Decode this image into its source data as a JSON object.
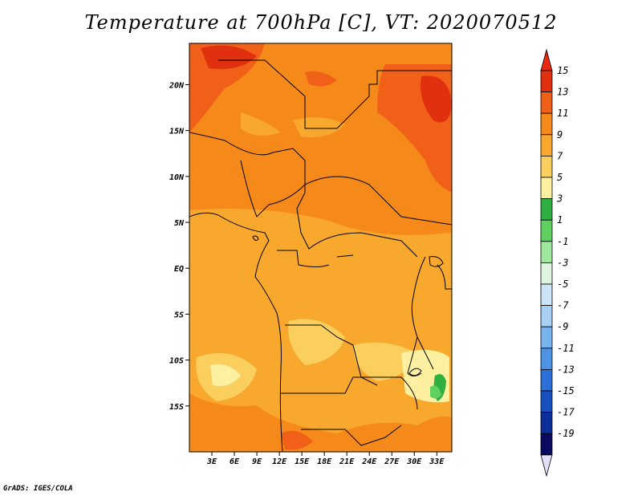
{
  "title": "Temperature at 700hPa [C], VT: 2020070512",
  "credit": "GrADS: IGES/COLA",
  "map": {
    "lon_range": [
      0,
      35
    ],
    "lat_range": [
      -20,
      24.5
    ],
    "lat_ticks": [
      {
        "value": 20,
        "label": "20N"
      },
      {
        "value": 15,
        "label": "15N"
      },
      {
        "value": 10,
        "label": "10N"
      },
      {
        "value": 5,
        "label": "5N"
      },
      {
        "value": 0,
        "label": "EQ"
      },
      {
        "value": -5,
        "label": "5S"
      },
      {
        "value": -10,
        "label": "10S"
      },
      {
        "value": -15,
        "label": "15S"
      }
    ],
    "lon_ticks": [
      {
        "value": 3,
        "label": "3E"
      },
      {
        "value": 6,
        "label": "6E"
      },
      {
        "value": 9,
        "label": "9E"
      },
      {
        "value": 12,
        "label": "12E"
      },
      {
        "value": 15,
        "label": "15E"
      },
      {
        "value": 18,
        "label": "18E"
      },
      {
        "value": 21,
        "label": "21E"
      },
      {
        "value": 24,
        "label": "24E"
      },
      {
        "value": 27,
        "label": "27E"
      },
      {
        "value": 30,
        "label": "30E"
      },
      {
        "value": 33,
        "label": "33E"
      }
    ]
  },
  "colorbar": {
    "levels": [
      "15",
      "13",
      "11",
      "9",
      "7",
      "5",
      "3",
      "1",
      "-1",
      "-3",
      "-5",
      "-7",
      "-9",
      "-11",
      "-13",
      "-15",
      "-17",
      "-19"
    ],
    "colors": [
      "#e03010",
      "#f06018",
      "#f58a1a",
      "#f9a82e",
      "#fbcf5e",
      "#fdf0a0",
      "#30b040",
      "#60d060",
      "#a0e8a0",
      "#e0f5e0",
      "#cce4f8",
      "#a8d0f4",
      "#7ab4ee",
      "#4f94e4",
      "#2a70d8",
      "#1850c0",
      "#0c2e98",
      "#0a0a60"
    ],
    "top_color": "#e82810",
    "bottom_color": "#e0e0f8"
  }
}
